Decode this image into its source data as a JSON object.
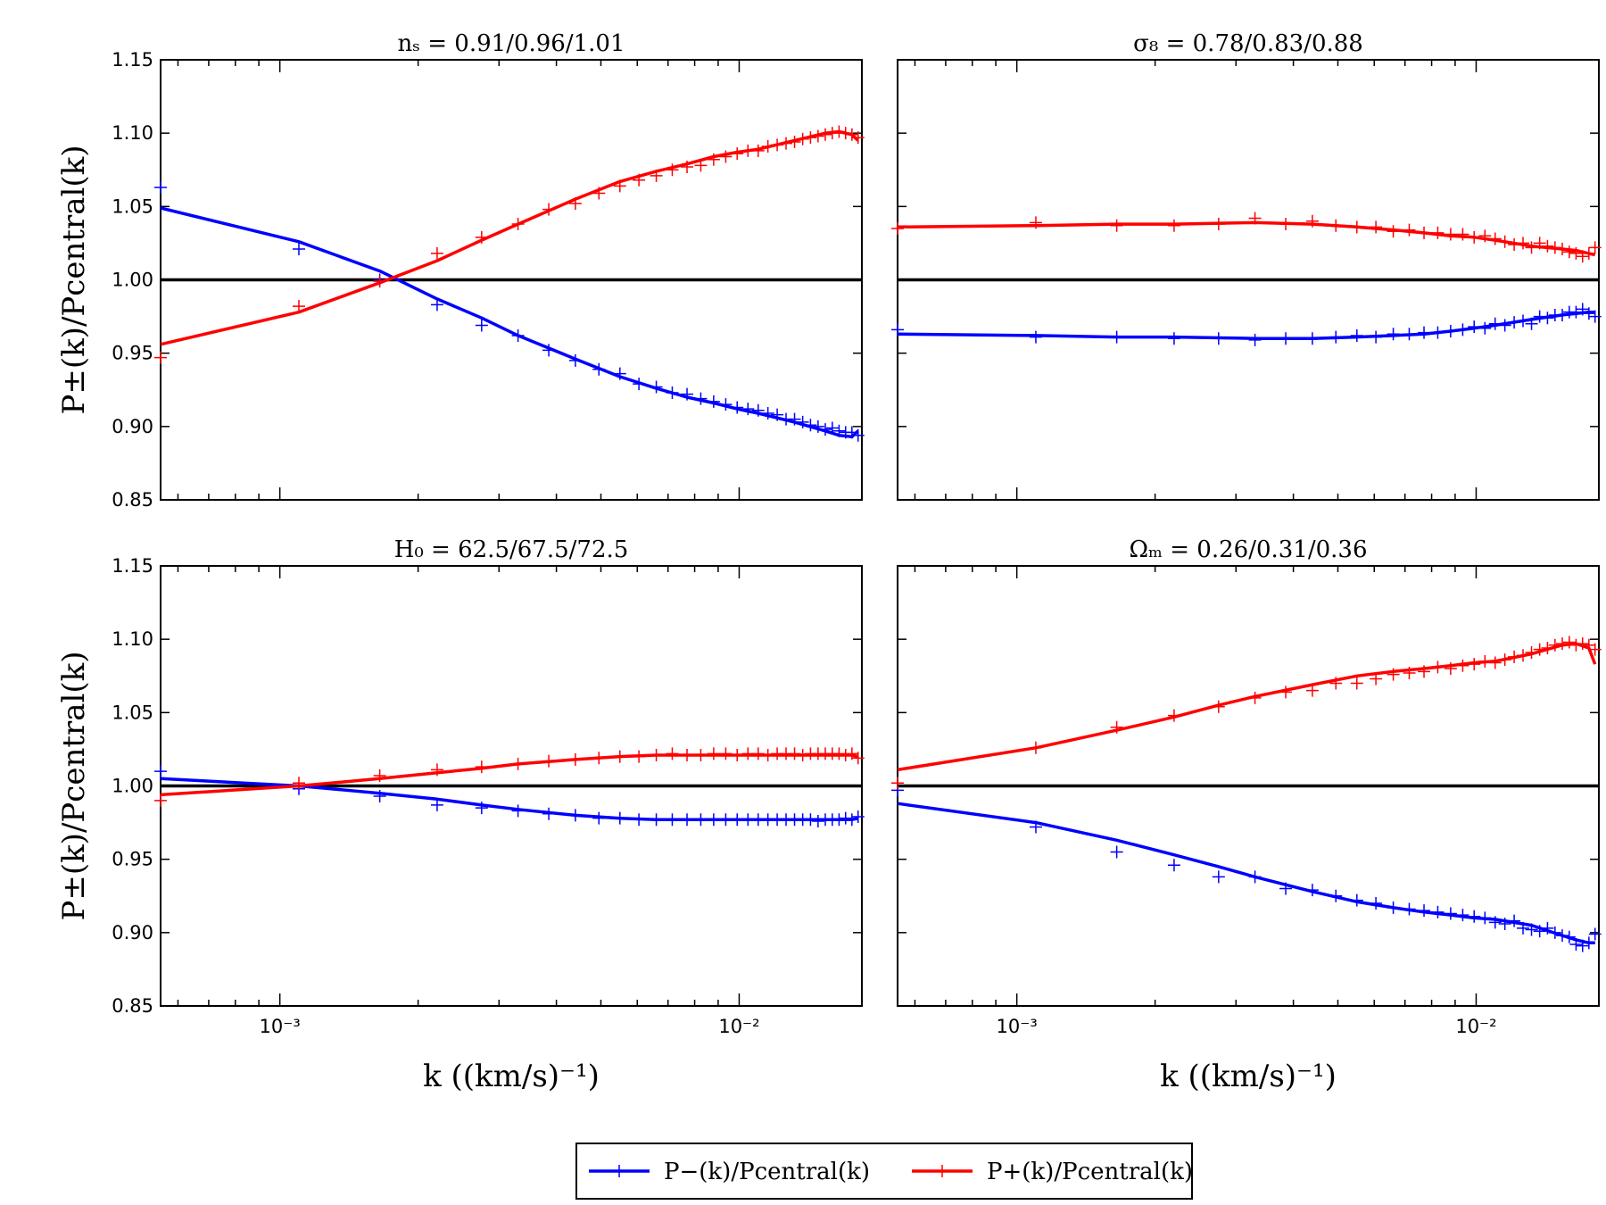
{
  "chart_data": {
    "type": "line",
    "layout": "2x2 grid, shared log x axis",
    "xscale": "log",
    "xlim": [
      0.00055,
      0.0185
    ],
    "ylim": [
      0.85,
      1.15
    ],
    "xlabel": "k ((km/s)⁻¹)",
    "ylabel": "P±(k)/Pcentral(k)",
    "yticks": [
      "0.85",
      "0.90",
      "0.95",
      "1.00",
      "1.05",
      "1.10",
      "1.15"
    ],
    "ytick_values": [
      0.85,
      0.9,
      0.95,
      1.0,
      1.05,
      1.1,
      1.15
    ],
    "xticks": [
      {
        "value": 0.001,
        "label": "10⁻³"
      },
      {
        "value": 0.01,
        "label": "10⁻²"
      }
    ],
    "reference_line": 1.0,
    "legend": {
      "placement": "bottom-center",
      "entries": [
        {
          "name": "P−(k)/Pcentral(k)",
          "color": "#0000ff"
        },
        {
          "name": "P+(k)/Pcentral(k)",
          "color": "#ff0000"
        }
      ]
    },
    "k_points": [
      0.00055,
      0.0011,
      0.00165,
      0.0022,
      0.00275,
      0.0033,
      0.00385,
      0.0044,
      0.00495,
      0.0055,
      0.00605,
      0.0066,
      0.00715,
      0.0077,
      0.00825,
      0.0088,
      0.00935,
      0.0099,
      0.01045,
      0.011,
      0.01155,
      0.0121,
      0.01265,
      0.0132,
      0.01375,
      0.0143,
      0.01485,
      0.0154,
      0.01595,
      0.0165,
      0.01705,
      0.0176,
      0.01815
    ],
    "panels": [
      {
        "title": "nₛ = 0.91/0.96/1.01",
        "series": [
          {
            "name": "P−(k)/Pcentral(k)",
            "color": "#0000ff",
            "curve_x": [
              0.00055,
              0.0011,
              0.00165,
              0.0022,
              0.00275,
              0.0033,
              0.0044,
              0.0055,
              0.0066,
              0.0077,
              0.0088,
              0.0099,
              0.011,
              0.0132,
              0.0154,
              0.0165,
              0.0176,
              0.01815
            ],
            "curve_y": [
              1.049,
              1.026,
              1.006,
              0.987,
              0.974,
              0.962,
              0.946,
              0.934,
              0.926,
              0.92,
              0.916,
              0.912,
              0.909,
              0.903,
              0.897,
              0.894,
              0.893,
              0.897
            ],
            "markers": [
              1.063,
              1.021,
              1.0,
              0.983,
              0.969,
              0.962,
              0.952,
              0.945,
              0.939,
              0.936,
              0.929,
              0.927,
              0.923,
              0.922,
              0.919,
              0.917,
              0.915,
              0.913,
              0.912,
              0.911,
              0.909,
              0.908,
              0.905,
              0.905,
              0.903,
              0.901,
              0.9,
              0.898,
              0.899,
              0.897,
              0.896,
              0.896,
              0.894
            ]
          },
          {
            "name": "P+(k)/Pcentral(k)",
            "color": "#ff0000",
            "curve_x": [
              0.00055,
              0.0011,
              0.00165,
              0.0022,
              0.00275,
              0.0033,
              0.0044,
              0.0055,
              0.0066,
              0.0077,
              0.0088,
              0.0099,
              0.011,
              0.0132,
              0.0154,
              0.0165,
              0.0176,
              0.01815
            ],
            "curve_y": [
              0.956,
              0.978,
              0.998,
              1.013,
              1.027,
              1.038,
              1.055,
              1.067,
              1.074,
              1.079,
              1.084,
              1.087,
              1.089,
              1.095,
              1.1,
              1.101,
              1.099,
              1.095
            ],
            "markers": [
              0.947,
              0.982,
              0.999,
              1.018,
              1.029,
              1.038,
              1.048,
              1.052,
              1.059,
              1.064,
              1.068,
              1.071,
              1.075,
              1.077,
              1.078,
              1.082,
              1.084,
              1.086,
              1.088,
              1.088,
              1.091,
              1.092,
              1.093,
              1.094,
              1.096,
              1.097,
              1.098,
              1.099,
              1.1,
              1.101,
              1.1,
              1.099,
              1.097
            ]
          }
        ]
      },
      {
        "title": "σ₈ = 0.78/0.83/0.88",
        "series": [
          {
            "name": "P−(k)/Pcentral(k)",
            "color": "#0000ff",
            "curve_x": [
              0.00055,
              0.0011,
              0.00165,
              0.0022,
              0.0033,
              0.0044,
              0.0055,
              0.0066,
              0.0077,
              0.0088,
              0.0099,
              0.011,
              0.0132,
              0.0154,
              0.0165,
              0.0176,
              0.01815
            ],
            "curve_y": [
              0.963,
              0.962,
              0.961,
              0.961,
              0.96,
              0.96,
              0.961,
              0.962,
              0.963,
              0.965,
              0.967,
              0.969,
              0.973,
              0.976,
              0.977,
              0.978,
              0.978
            ],
            "markers": [
              0.966,
              0.961,
              0.961,
              0.96,
              0.96,
              0.959,
              0.96,
              0.96,
              0.961,
              0.962,
              0.961,
              0.963,
              0.963,
              0.964,
              0.964,
              0.965,
              0.966,
              0.968,
              0.967,
              0.97,
              0.969,
              0.971,
              0.972,
              0.97,
              0.975,
              0.974,
              0.976,
              0.976,
              0.978,
              0.978,
              0.98,
              0.977,
              0.975
            ]
          },
          {
            "name": "P+(k)/Pcentral(k)",
            "color": "#ff0000",
            "curve_x": [
              0.00055,
              0.0011,
              0.00165,
              0.0022,
              0.0033,
              0.0044,
              0.0055,
              0.0066,
              0.0077,
              0.0088,
              0.0099,
              0.011,
              0.0132,
              0.0154,
              0.0165,
              0.0176,
              0.01815
            ],
            "curve_y": [
              1.036,
              1.037,
              1.038,
              1.038,
              1.039,
              1.038,
              1.036,
              1.034,
              1.032,
              1.03,
              1.029,
              1.027,
              1.023,
              1.021,
              1.02,
              1.018,
              1.017
            ],
            "markers": [
              1.035,
              1.039,
              1.037,
              1.037,
              1.038,
              1.042,
              1.038,
              1.04,
              1.037,
              1.036,
              1.036,
              1.033,
              1.034,
              1.032,
              1.032,
              1.031,
              1.031,
              1.029,
              1.03,
              1.028,
              1.026,
              1.024,
              1.025,
              1.022,
              1.025,
              1.023,
              1.022,
              1.021,
              1.019,
              1.018,
              1.016,
              1.018,
              1.022
            ]
          }
        ]
      },
      {
        "title": "H₀ = 62.5/67.5/72.5",
        "series": [
          {
            "name": "P−(k)/Pcentral(k)",
            "color": "#0000ff",
            "curve_x": [
              0.00055,
              0.0011,
              0.00165,
              0.0022,
              0.00275,
              0.0033,
              0.0044,
              0.0055,
              0.0066,
              0.0077,
              0.0088,
              0.0099,
              0.011,
              0.0132,
              0.0154,
              0.0165,
              0.0176,
              0.01815
            ],
            "curve_y": [
              1.005,
              1.0,
              0.995,
              0.991,
              0.987,
              0.984,
              0.98,
              0.978,
              0.977,
              0.977,
              0.977,
              0.977,
              0.977,
              0.977,
              0.977,
              0.977,
              0.977,
              0.978
            ],
            "markers": [
              1.01,
              0.998,
              0.993,
              0.987,
              0.985,
              0.983,
              0.981,
              0.98,
              0.978,
              0.978,
              0.977,
              0.977,
              0.977,
              0.977,
              0.977,
              0.977,
              0.977,
              0.977,
              0.977,
              0.977,
              0.977,
              0.977,
              0.977,
              0.977,
              0.977,
              0.977,
              0.976,
              0.977,
              0.977,
              0.977,
              0.978,
              0.977,
              0.979
            ]
          },
          {
            "name": "P+(k)/Pcentral(k)",
            "color": "#ff0000",
            "curve_x": [
              0.00055,
              0.0011,
              0.00165,
              0.0022,
              0.00275,
              0.0033,
              0.0044,
              0.0055,
              0.0066,
              0.0077,
              0.0088,
              0.0099,
              0.011,
              0.0132,
              0.0154,
              0.0165,
              0.0176,
              0.01815
            ],
            "curve_y": [
              0.994,
              1.0,
              1.005,
              1.009,
              1.012,
              1.015,
              1.018,
              1.02,
              1.021,
              1.021,
              1.021,
              1.021,
              1.021,
              1.021,
              1.021,
              1.021,
              1.021,
              1.02
            ],
            "markers": [
              0.99,
              1.002,
              1.007,
              1.011,
              1.013,
              1.015,
              1.017,
              1.018,
              1.019,
              1.02,
              1.02,
              1.021,
              1.022,
              1.021,
              1.021,
              1.022,
              1.022,
              1.021,
              1.022,
              1.022,
              1.021,
              1.022,
              1.022,
              1.022,
              1.021,
              1.022,
              1.022,
              1.022,
              1.022,
              1.022,
              1.021,
              1.022,
              1.019
            ]
          }
        ]
      },
      {
        "title": "Ωₘ = 0.26/0.31/0.36",
        "series": [
          {
            "name": "P−(k)/Pcentral(k)",
            "color": "#0000ff",
            "curve_x": [
              0.00055,
              0.0011,
              0.00165,
              0.0022,
              0.00275,
              0.0033,
              0.0044,
              0.0055,
              0.0066,
              0.0077,
              0.0088,
              0.0099,
              0.011,
              0.0132,
              0.0154,
              0.0165,
              0.0176,
              0.01815
            ],
            "curve_y": [
              0.988,
              0.975,
              0.963,
              0.953,
              0.945,
              0.938,
              0.928,
              0.921,
              0.917,
              0.914,
              0.912,
              0.91,
              0.909,
              0.905,
              0.898,
              0.895,
              0.893,
              0.893
            ],
            "markers": [
              0.997,
              0.972,
              0.955,
              0.946,
              0.938,
              0.938,
              0.93,
              0.929,
              0.925,
              0.922,
              0.92,
              0.917,
              0.916,
              0.915,
              0.914,
              0.913,
              0.912,
              0.911,
              0.91,
              0.907,
              0.906,
              0.908,
              0.903,
              0.902,
              0.901,
              0.903,
              0.9,
              0.898,
              0.897,
              0.892,
              0.891,
              0.893,
              0.899
            ]
          },
          {
            "name": "P+(k)/Pcentral(k)",
            "color": "#ff0000",
            "curve_x": [
              0.00055,
              0.0011,
              0.00165,
              0.0022,
              0.00275,
              0.0033,
              0.0044,
              0.0055,
              0.0066,
              0.0077,
              0.0088,
              0.0099,
              0.011,
              0.0132,
              0.0154,
              0.0165,
              0.0176,
              0.01815
            ],
            "curve_y": [
              1.011,
              1.026,
              1.038,
              1.047,
              1.055,
              1.061,
              1.069,
              1.075,
              1.078,
              1.08,
              1.082,
              1.084,
              1.085,
              1.09,
              1.096,
              1.097,
              1.094,
              1.083
            ],
            "markers": [
              1.002,
              1.026,
              1.04,
              1.048,
              1.054,
              1.06,
              1.064,
              1.065,
              1.07,
              1.07,
              1.073,
              1.076,
              1.077,
              1.078,
              1.081,
              1.08,
              1.082,
              1.083,
              1.085,
              1.084,
              1.086,
              1.088,
              1.089,
              1.091,
              1.093,
              1.094,
              1.096,
              1.097,
              1.098,
              1.096,
              1.097,
              1.096,
              1.093
            ]
          }
        ]
      }
    ]
  }
}
